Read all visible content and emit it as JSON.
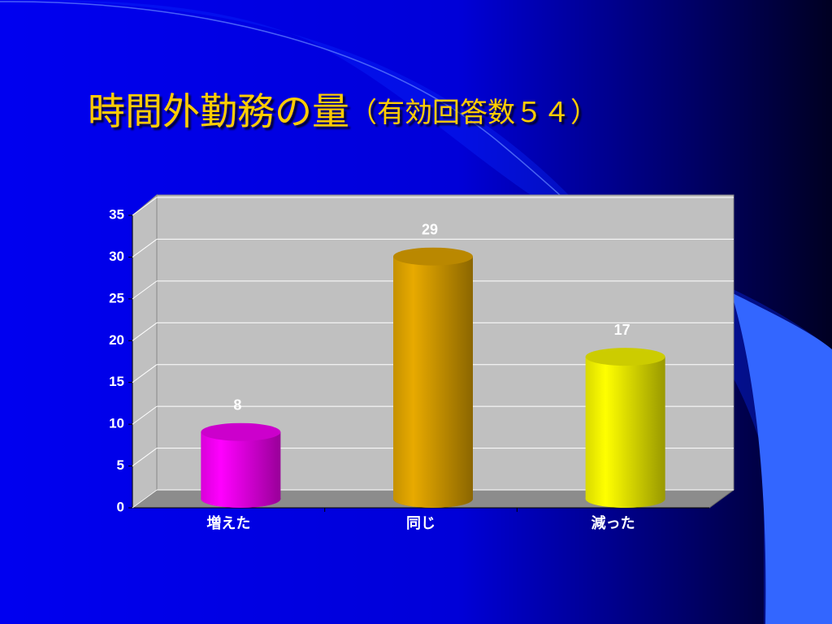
{
  "chart_data": {
    "type": "bar",
    "title": "時間外勤務の量",
    "subtitle": "（有効回答数５４）",
    "categories": [
      "増えた",
      "同じ",
      "減った"
    ],
    "values": [
      8,
      29,
      17
    ],
    "colors": [
      "#ff00ff",
      "#e8aa00",
      "#ffff00"
    ],
    "ylim": [
      0,
      35
    ],
    "yticks": [
      0,
      5,
      10,
      15,
      20,
      25,
      30,
      35
    ],
    "grid": true
  }
}
